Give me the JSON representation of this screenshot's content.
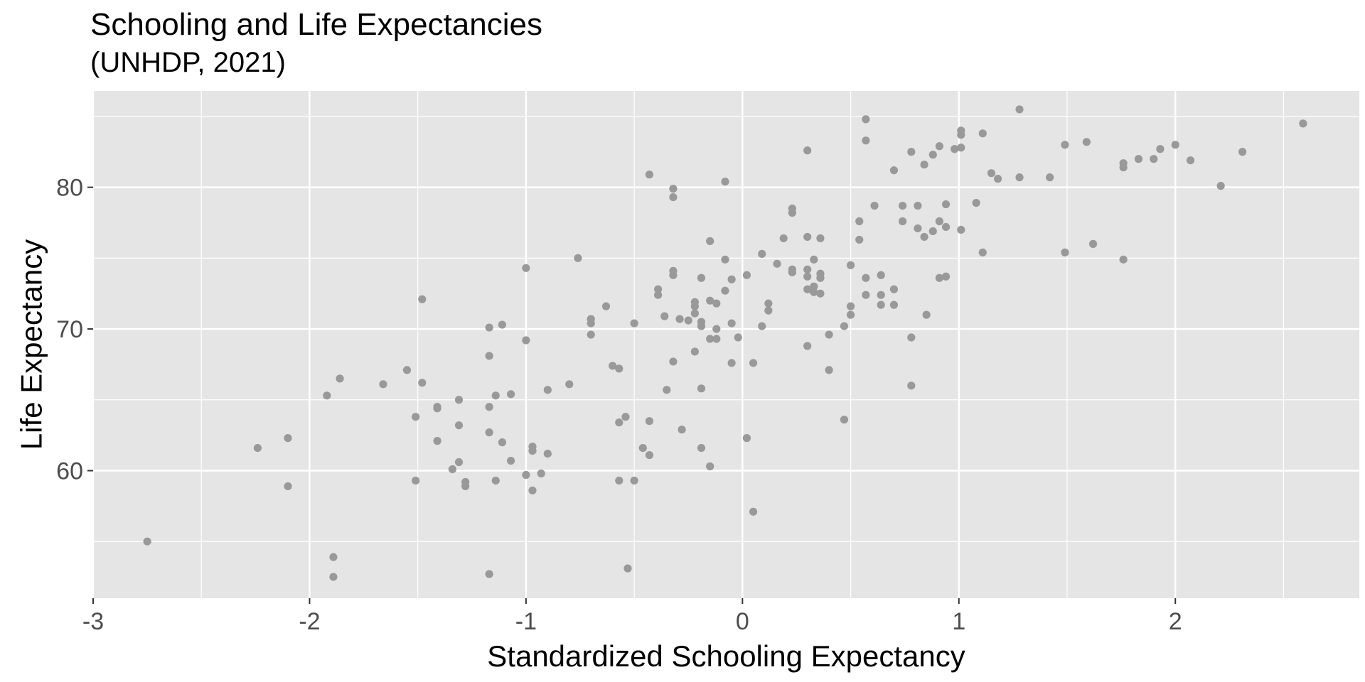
{
  "chart_data": {
    "type": "scatter",
    "title": "Schooling and Life Expectancies",
    "subtitle": "(UNHDP, 2021)",
    "xlabel": "Standardized Schooling Expectancy",
    "ylabel": "Life Expectancy",
    "xlim": [
      -3.0,
      2.85
    ],
    "ylim": [
      51.0,
      86.8
    ],
    "x_major_ticks": [
      -3,
      -2,
      -1,
      0,
      1,
      2
    ],
    "x_tick_labels": [
      "-3",
      "-2",
      "-1",
      "0",
      "1",
      "2"
    ],
    "x_minor_ticks": [
      -2.5,
      -1.5,
      -0.5,
      0.5,
      1.5,
      2.5
    ],
    "y_major_ticks": [
      60,
      70,
      80
    ],
    "y_tick_labels": [
      "60",
      "70",
      "80"
    ],
    "y_minor_ticks": [
      55,
      65,
      75,
      85
    ],
    "grid": true,
    "panel_color": "#e5e5e5",
    "grid_color": "#ffffff",
    "point_color": "#999999",
    "points": [
      [
        -2.75,
        55.0
      ],
      [
        -2.24,
        61.6
      ],
      [
        -2.1,
        62.3
      ],
      [
        -2.1,
        58.9
      ],
      [
        -1.92,
        65.3
      ],
      [
        -1.89,
        53.9
      ],
      [
        -1.89,
        52.5
      ],
      [
        -1.86,
        66.5
      ],
      [
        -1.66,
        66.1
      ],
      [
        -1.55,
        67.1
      ],
      [
        -1.51,
        63.8
      ],
      [
        -1.51,
        59.3
      ],
      [
        -1.48,
        72.1
      ],
      [
        -1.48,
        66.2
      ],
      [
        -1.41,
        64.5
      ],
      [
        -1.41,
        64.4
      ],
      [
        -1.41,
        62.1
      ],
      [
        -1.34,
        60.1
      ],
      [
        -1.31,
        65.0
      ],
      [
        -1.31,
        63.2
      ],
      [
        -1.31,
        60.6
      ],
      [
        -1.28,
        59.2
      ],
      [
        -1.28,
        58.9
      ],
      [
        -1.17,
        70.1
      ],
      [
        -1.17,
        68.1
      ],
      [
        -1.17,
        64.5
      ],
      [
        -1.17,
        62.7
      ],
      [
        -1.17,
        52.7
      ],
      [
        -1.14,
        65.3
      ],
      [
        -1.14,
        59.3
      ],
      [
        -1.11,
        70.3
      ],
      [
        -1.11,
        62.0
      ],
      [
        -1.07,
        65.4
      ],
      [
        -1.07,
        60.7
      ],
      [
        -1.0,
        74.3
      ],
      [
        -1.0,
        69.2
      ],
      [
        -1.0,
        59.7
      ],
      [
        -0.97,
        61.7
      ],
      [
        -0.97,
        61.4
      ],
      [
        -0.97,
        58.6
      ],
      [
        -0.93,
        59.8
      ],
      [
        -0.9,
        65.7
      ],
      [
        -0.9,
        61.2
      ],
      [
        -0.8,
        66.1
      ],
      [
        -0.76,
        75.0
      ],
      [
        -0.7,
        70.7
      ],
      [
        -0.7,
        70.4
      ],
      [
        -0.7,
        69.6
      ],
      [
        -0.63,
        71.6
      ],
      [
        -0.6,
        67.4
      ],
      [
        -0.57,
        67.2
      ],
      [
        -0.57,
        63.4
      ],
      [
        -0.57,
        59.3
      ],
      [
        -0.54,
        63.8
      ],
      [
        -0.53,
        53.1
      ],
      [
        -0.5,
        70.4
      ],
      [
        -0.5,
        59.3
      ],
      [
        -0.46,
        61.6
      ],
      [
        -0.43,
        80.9
      ],
      [
        -0.43,
        63.5
      ],
      [
        -0.43,
        61.1
      ],
      [
        -0.39,
        72.8
      ],
      [
        -0.39,
        72.4
      ],
      [
        -0.36,
        70.9
      ],
      [
        -0.35,
        65.7
      ],
      [
        -0.32,
        79.9
      ],
      [
        -0.32,
        79.3
      ],
      [
        -0.32,
        74.1
      ],
      [
        -0.32,
        73.8
      ],
      [
        -0.32,
        67.7
      ],
      [
        -0.29,
        70.7
      ],
      [
        -0.28,
        62.9
      ],
      [
        -0.25,
        70.6
      ],
      [
        -0.22,
        71.9
      ],
      [
        -0.22,
        71.6
      ],
      [
        -0.22,
        71.1
      ],
      [
        -0.22,
        68.4
      ],
      [
        -0.19,
        73.6
      ],
      [
        -0.19,
        70.5
      ],
      [
        -0.19,
        70.2
      ],
      [
        -0.19,
        65.8
      ],
      [
        -0.19,
        61.6
      ],
      [
        -0.15,
        76.2
      ],
      [
        -0.15,
        72.0
      ],
      [
        -0.15,
        69.3
      ],
      [
        -0.15,
        60.3
      ],
      [
        -0.12,
        71.8
      ],
      [
        -0.12,
        70.0
      ],
      [
        -0.12,
        69.3
      ],
      [
        -0.08,
        80.4
      ],
      [
        -0.08,
        74.9
      ],
      [
        -0.08,
        72.7
      ],
      [
        -0.05,
        73.5
      ],
      [
        -0.05,
        70.4
      ],
      [
        -0.05,
        67.6
      ],
      [
        -0.02,
        69.4
      ],
      [
        0.02,
        73.8
      ],
      [
        0.02,
        62.3
      ],
      [
        0.05,
        67.6
      ],
      [
        0.05,
        57.1
      ],
      [
        0.09,
        75.3
      ],
      [
        0.09,
        70.2
      ],
      [
        0.12,
        71.8
      ],
      [
        0.12,
        71.3
      ],
      [
        0.16,
        74.6
      ],
      [
        0.19,
        76.4
      ],
      [
        0.23,
        78.5
      ],
      [
        0.23,
        78.2
      ],
      [
        0.23,
        74.2
      ],
      [
        0.23,
        74.0
      ],
      [
        0.3,
        82.6
      ],
      [
        0.3,
        76.5
      ],
      [
        0.3,
        74.2
      ],
      [
        0.3,
        73.7
      ],
      [
        0.3,
        72.8
      ],
      [
        0.3,
        68.8
      ],
      [
        0.33,
        74.9
      ],
      [
        0.33,
        73.0
      ],
      [
        0.33,
        72.6
      ],
      [
        0.36,
        76.4
      ],
      [
        0.36,
        73.9
      ],
      [
        0.36,
        73.6
      ],
      [
        0.36,
        72.5
      ],
      [
        0.4,
        69.6
      ],
      [
        0.4,
        67.1
      ],
      [
        0.47,
        70.2
      ],
      [
        0.47,
        63.6
      ],
      [
        0.5,
        74.5
      ],
      [
        0.5,
        71.6
      ],
      [
        0.5,
        71.0
      ],
      [
        0.54,
        77.6
      ],
      [
        0.54,
        76.3
      ],
      [
        0.57,
        84.8
      ],
      [
        0.57,
        83.3
      ],
      [
        0.57,
        73.6
      ],
      [
        0.57,
        72.4
      ],
      [
        0.61,
        78.7
      ],
      [
        0.64,
        73.8
      ],
      [
        0.64,
        72.4
      ],
      [
        0.64,
        71.7
      ],
      [
        0.7,
        81.2
      ],
      [
        0.7,
        72.8
      ],
      [
        0.7,
        71.7
      ],
      [
        0.74,
        78.7
      ],
      [
        0.74,
        77.6
      ],
      [
        0.78,
        82.5
      ],
      [
        0.78,
        69.4
      ],
      [
        0.78,
        66.0
      ],
      [
        0.81,
        78.7
      ],
      [
        0.81,
        77.1
      ],
      [
        0.84,
        81.6
      ],
      [
        0.84,
        76.5
      ],
      [
        0.85,
        71.0
      ],
      [
        0.88,
        82.3
      ],
      [
        0.88,
        76.9
      ],
      [
        0.91,
        82.9
      ],
      [
        0.91,
        77.6
      ],
      [
        0.91,
        73.6
      ],
      [
        0.94,
        78.8
      ],
      [
        0.94,
        77.2
      ],
      [
        0.94,
        73.7
      ],
      [
        0.98,
        82.7
      ],
      [
        1.01,
        84.0
      ],
      [
        1.01,
        83.7
      ],
      [
        1.01,
        82.8
      ],
      [
        1.01,
        77.0
      ],
      [
        1.08,
        78.9
      ],
      [
        1.11,
        83.8
      ],
      [
        1.11,
        75.4
      ],
      [
        1.15,
        81.0
      ],
      [
        1.18,
        80.6
      ],
      [
        1.28,
        85.5
      ],
      [
        1.28,
        80.7
      ],
      [
        1.42,
        80.7
      ],
      [
        1.49,
        83.0
      ],
      [
        1.49,
        75.4
      ],
      [
        1.59,
        83.2
      ],
      [
        1.62,
        76.0
      ],
      [
        1.76,
        81.7
      ],
      [
        1.76,
        81.4
      ],
      [
        1.76,
        74.9
      ],
      [
        1.83,
        82.0
      ],
      [
        1.9,
        82.0
      ],
      [
        1.93,
        82.7
      ],
      [
        2.0,
        83.0
      ],
      [
        2.07,
        81.9
      ],
      [
        2.21,
        80.1
      ],
      [
        2.31,
        82.5
      ],
      [
        2.59,
        84.5
      ]
    ]
  }
}
